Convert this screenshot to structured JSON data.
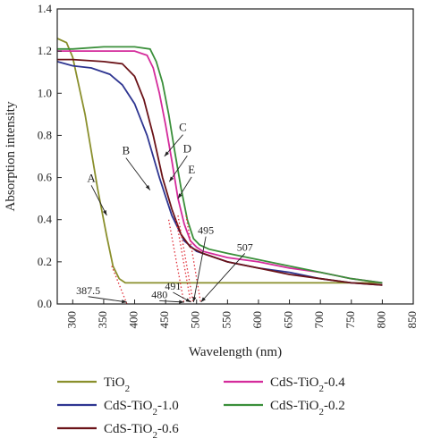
{
  "chart_data": {
    "type": "line",
    "xlabel": "Wavelength (nm)",
    "ylabel": "Absorption intensity",
    "xlim": [
      275,
      850
    ],
    "ylim": [
      0,
      1.4
    ],
    "xticks": [
      "300",
      "350",
      "400",
      "450",
      "500",
      "550",
      "600",
      "650",
      "700",
      "750",
      "800",
      "850"
    ],
    "yticks": [
      "0.0",
      "0.2",
      "0.4",
      "0.6",
      "0.8",
      "1.0",
      "1.2",
      "1.4"
    ],
    "series": [
      {
        "name": "TiO2",
        "label_main": "TiO",
        "label_sub": "2",
        "label_rest": "",
        "color": "#8a8f2c",
        "x": [
          275,
          290,
          300,
          320,
          340,
          355,
          365,
          375,
          385,
          395,
          420,
          500,
          600,
          700,
          800
        ],
        "y": [
          1.26,
          1.24,
          1.17,
          0.9,
          0.55,
          0.32,
          0.18,
          0.12,
          0.1,
          0.1,
          0.1,
          0.1,
          0.1,
          0.1,
          0.1
        ]
      },
      {
        "name": "CdS-TiO2-1.0",
        "label_main": "CdS-TiO",
        "label_sub": "2",
        "label_rest": "-1.0",
        "color": "#2e3591",
        "x": [
          275,
          300,
          330,
          360,
          380,
          400,
          420,
          440,
          460,
          480,
          500,
          550,
          600,
          650,
          700,
          750,
          800
        ],
        "y": [
          1.15,
          1.13,
          1.12,
          1.09,
          1.04,
          0.95,
          0.8,
          0.6,
          0.42,
          0.3,
          0.25,
          0.2,
          0.17,
          0.15,
          0.12,
          0.1,
          0.09
        ]
      },
      {
        "name": "CdS-TiO2-0.6",
        "label_main": "CdS-TiO",
        "label_sub": "2",
        "label_rest": "-0.6",
        "color": "#6b1318",
        "x": [
          275,
          300,
          350,
          380,
          400,
          415,
          430,
          445,
          460,
          475,
          490,
          510,
          550,
          600,
          650,
          700,
          750,
          800
        ],
        "y": [
          1.16,
          1.16,
          1.15,
          1.14,
          1.08,
          0.97,
          0.8,
          0.6,
          0.45,
          0.33,
          0.27,
          0.24,
          0.2,
          0.17,
          0.14,
          0.12,
          0.1,
          0.09
        ]
      },
      {
        "name": "CdS-TiO2-0.4",
        "label_main": "CdS-TiO",
        "label_sub": "2",
        "label_rest": "-0.4",
        "color": "#d42b9b",
        "x": [
          275,
          300,
          350,
          400,
          420,
          430,
          440,
          450,
          460,
          470,
          480,
          490,
          500,
          510,
          550,
          600,
          650,
          700,
          750,
          800
        ],
        "y": [
          1.2,
          1.2,
          1.2,
          1.2,
          1.18,
          1.12,
          1.0,
          0.85,
          0.68,
          0.5,
          0.38,
          0.3,
          0.27,
          0.25,
          0.22,
          0.2,
          0.17,
          0.15,
          0.12,
          0.1
        ]
      },
      {
        "name": "CdS-TiO2-0.2",
        "label_main": "CdS-TiO",
        "label_sub": "2",
        "label_rest": "-0.2",
        "color": "#3a8f3a",
        "x": [
          275,
          300,
          350,
          400,
          425,
          435,
          445,
          455,
          465,
          475,
          485,
          495,
          505,
          520,
          550,
          600,
          650,
          700,
          750,
          800
        ],
        "y": [
          1.21,
          1.21,
          1.22,
          1.22,
          1.21,
          1.15,
          1.05,
          0.9,
          0.72,
          0.55,
          0.4,
          0.31,
          0.28,
          0.26,
          0.24,
          0.21,
          0.18,
          0.15,
          0.12,
          0.1
        ]
      }
    ],
    "extrapolation_lines": [
      {
        "x": [
          363,
          387.5
        ],
        "y": [
          0.18,
          0
        ]
      },
      {
        "x": [
          455,
          480
        ],
        "y": [
          0.4,
          0
        ]
      },
      {
        "x": [
          467,
          491
        ],
        "y": [
          0.4,
          0
        ]
      },
      {
        "x": [
          470,
          495
        ],
        "y": [
          0.42,
          0
        ]
      },
      {
        "x": [
          483,
          507
        ],
        "y": [
          0.42,
          0
        ]
      }
    ],
    "edge_annotations": [
      {
        "text": "387.5",
        "x": 387.5,
        "tx": 325,
        "ty": 0.035
      },
      {
        "text": "480",
        "x": 480,
        "tx": 440,
        "ty": 0.015
      },
      {
        "text": "491",
        "x": 491,
        "tx": 462,
        "ty": 0.055
      },
      {
        "text": "495",
        "x": 495,
        "tx": 515,
        "ty": 0.32
      },
      {
        "text": "507",
        "x": 507,
        "tx": 578,
        "ty": 0.24
      }
    ],
    "curve_letters": [
      {
        "text": "A",
        "lx": 330,
        "ly": 0.58,
        "ax": 355,
        "ay": 0.42
      },
      {
        "text": "B",
        "lx": 386,
        "ly": 0.71,
        "ax": 425,
        "ay": 0.54
      },
      {
        "text": "C",
        "lx": 478,
        "ly": 0.82,
        "ax": 448,
        "ay": 0.7
      },
      {
        "text": "D",
        "lx": 485,
        "ly": 0.72,
        "ax": 456,
        "ay": 0.58
      },
      {
        "text": "E",
        "lx": 492,
        "ly": 0.62,
        "ax": 470,
        "ay": 0.5
      }
    ]
  }
}
